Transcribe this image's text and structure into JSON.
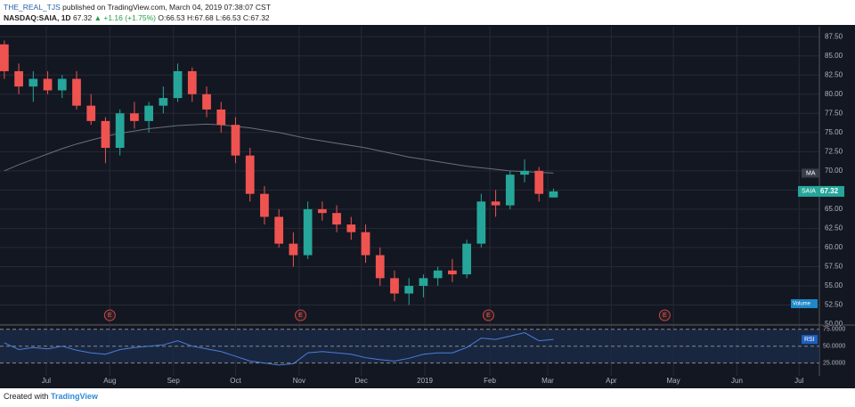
{
  "header": {
    "publisher": "THE_REAL_TJS",
    "published": "published on TradingView.com, March 04, 2019 07:38:07 CST",
    "symbol": "NASDAQ:SAIA, 1D",
    "price": "67.32",
    "change": "▲ +1.16 (+1.75%)",
    "open": "O:66.53",
    "high": "H:67.68",
    "low": "L:66.53",
    "close": "C:67.32"
  },
  "footer": {
    "created": "Created with",
    "brand": "TradingView"
  },
  "chart_data": {
    "type": "candlestick",
    "categories": [
      null,
      null,
      null,
      null,
      null,
      null,
      null,
      null,
      null,
      null,
      null,
      null,
      null,
      null,
      null,
      null,
      null,
      null,
      null,
      null,
      null,
      null,
      null,
      null,
      null,
      null,
      null,
      null,
      null,
      null,
      null,
      null,
      null,
      null,
      null,
      null,
      null,
      null,
      null
    ],
    "open": [
      86.5,
      83,
      81,
      82,
      80.5,
      82,
      78.5,
      76.5,
      73,
      77.5,
      76.5,
      78.5,
      79.5,
      83,
      80,
      78,
      76,
      72,
      67,
      64,
      60.5,
      59,
      65,
      64.5,
      63,
      62,
      59,
      56,
      54,
      55,
      56,
      57,
      56.5,
      60.5,
      66,
      65.5,
      69.5,
      70,
      66.53
    ],
    "high": [
      87,
      84,
      83,
      83,
      82.5,
      83,
      80,
      77,
      78,
      79,
      79,
      81,
      84,
      83.5,
      81,
      79,
      77,
      73,
      68,
      65,
      62,
      66,
      66,
      65.5,
      64,
      63,
      60,
      57,
      56,
      56.5,
      57.5,
      58.5,
      61,
      67,
      67.5,
      70,
      71.5,
      70.5,
      67.68
    ],
    "low": [
      82,
      80,
      79,
      80,
      79.5,
      78,
      76,
      71,
      72,
      75.5,
      75,
      77.5,
      79,
      79,
      77,
      75,
      71,
      66,
      63,
      60,
      57.5,
      58.5,
      63.5,
      62,
      61,
      58,
      55,
      53,
      52.5,
      53.5,
      55,
      55.5,
      56,
      60,
      64,
      65,
      68.5,
      66,
      66.53
    ],
    "close": [
      83,
      81,
      82,
      80.5,
      82,
      78.5,
      76.5,
      73,
      77.5,
      76.5,
      78.5,
      79.5,
      83,
      80,
      78,
      76,
      72,
      67,
      64,
      60.5,
      59,
      65,
      64.5,
      63,
      62,
      59,
      56,
      54,
      55,
      56,
      57,
      56.5,
      60.5,
      66,
      65.5,
      69.5,
      70,
      67,
      67.32
    ],
    "up_color": "#26a69a",
    "down_color": "#ef5350",
    "last_label": "SAIA",
    "ma": {
      "name": "MA",
      "color": "#6b6f7a",
      "values": [
        70,
        70.8,
        71.5,
        72.2,
        72.9,
        73.5,
        74,
        74.5,
        74.9,
        75.2,
        75.5,
        75.7,
        75.9,
        76,
        76.1,
        76,
        75.8,
        75.6,
        75.3,
        75,
        74.6,
        74.2,
        73.9,
        73.6,
        73.3,
        73,
        72.6,
        72.2,
        71.8,
        71.5,
        71.2,
        70.9,
        70.6,
        70.4,
        70.2,
        70,
        69.9,
        69.8,
        69.7
      ]
    },
    "xlim": [
      -0.3,
      56.4
    ],
    "xticks": [
      {
        "value": 2.9,
        "label": "Jul"
      },
      {
        "value": 7.3,
        "label": "Aug"
      },
      {
        "value": 11.7,
        "label": "Sep"
      },
      {
        "value": 16,
        "label": "Oct"
      },
      {
        "value": 20.4,
        "label": "Nov"
      },
      {
        "value": 24.7,
        "label": "Dec"
      },
      {
        "value": 29.1,
        "label": "2019"
      },
      {
        "value": 33.6,
        "label": "Feb"
      },
      {
        "value": 37.6,
        "label": "Mar"
      },
      {
        "value": 42,
        "label": "Apr"
      },
      {
        "value": 46.3,
        "label": "May"
      },
      {
        "value": 50.7,
        "label": "Jun"
      },
      {
        "value": 55,
        "label": "Jul"
      }
    ],
    "ylim": [
      50,
      88.8
    ],
    "yticks": [
      {
        "value": 50,
        "label": "50.00"
      },
      {
        "value": 52.5,
        "label": "52.50"
      },
      {
        "value": 55,
        "label": "55.00"
      },
      {
        "value": 57.5,
        "label": "57.50"
      },
      {
        "value": 60,
        "label": "60.00"
      },
      {
        "value": 62.5,
        "label": "62.50"
      },
      {
        "value": 65,
        "label": "65.00"
      },
      {
        "value": 67.5,
        "label": "67.50"
      },
      {
        "value": 70,
        "label": "70.00"
      },
      {
        "value": 72.5,
        "label": "72.50"
      },
      {
        "value": 75,
        "label": "75.00"
      },
      {
        "value": 77.5,
        "label": "77.50"
      },
      {
        "value": 80,
        "label": "80.00"
      },
      {
        "value": 82.5,
        "label": "82.50"
      },
      {
        "value": 85,
        "label": "85.00"
      },
      {
        "value": 87.5,
        "label": "87.50"
      }
    ],
    "grid": true,
    "events": {
      "label": "E",
      "x": [
        7.3,
        20.5,
        33.5,
        45.7
      ]
    },
    "volume_label": "Volume",
    "rsi": {
      "name": "RSI",
      "color": "#4a7fd6",
      "values": [
        55,
        45,
        48,
        46,
        50,
        44,
        40,
        38,
        45,
        48,
        50,
        52,
        58,
        50,
        46,
        42,
        35,
        28,
        25,
        22,
        24,
        40,
        42,
        40,
        38,
        33,
        30,
        28,
        32,
        38,
        40,
        40,
        48,
        62,
        60,
        65,
        70,
        58,
        60
      ],
      "ylim": [
        6,
        80
      ],
      "yticks": [
        {
          "value": 25,
          "label": "25.0000"
        },
        {
          "value": 50,
          "label": "50.0000"
        },
        {
          "value": 75,
          "label": "75.0000"
        }
      ]
    }
  }
}
